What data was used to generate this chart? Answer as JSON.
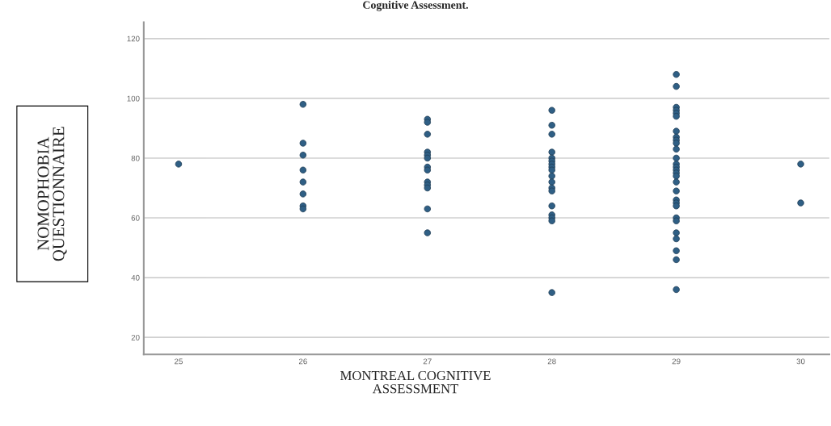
{
  "chart_data": {
    "type": "scatter",
    "title": "Cognitive Assessment.",
    "xlabel": "MONTREAL COGNITIVE\nASSESSMENT",
    "ylabel": "NOMOPHOBIA\nQUESTIONNAIRE",
    "x": [
      25,
      26,
      26,
      26,
      26,
      26,
      26,
      26,
      26,
      27,
      27,
      27,
      27,
      27,
      27,
      27,
      27,
      27,
      27,
      27,
      27,
      27,
      28,
      28,
      28,
      28,
      28,
      28,
      28,
      28,
      28,
      28,
      28,
      28,
      28,
      28,
      28,
      28,
      28,
      28,
      29,
      29,
      29,
      29,
      29,
      29,
      29,
      29,
      29,
      29,
      29,
      29,
      29,
      29,
      29,
      29,
      29,
      29,
      29,
      29,
      29,
      29,
      29,
      29,
      29,
      29,
      29,
      29,
      29,
      30,
      30
    ],
    "values": [
      78,
      98,
      85,
      81,
      76,
      72,
      68,
      64,
      63,
      93,
      92,
      88,
      82,
      81,
      80,
      77,
      76,
      72,
      71,
      70,
      63,
      55,
      96,
      91,
      88,
      82,
      80,
      79,
      78,
      77,
      76,
      74,
      72,
      70,
      69,
      64,
      61,
      60,
      59,
      35,
      108,
      104,
      97,
      96,
      95,
      94,
      89,
      87,
      86,
      85,
      83,
      80,
      78,
      77,
      76,
      75,
      74,
      72,
      69,
      66,
      65,
      64,
      60,
      59,
      55,
      53,
      49,
      46,
      36,
      78,
      65
    ],
    "color": "#2f5f85",
    "marker": "circle",
    "xlim": [
      24.72,
      30.23
    ],
    "xticks": [
      25,
      26,
      27,
      28,
      29,
      30
    ],
    "ylim": [
      14.3,
      125.5
    ],
    "yticks": [
      20,
      40,
      60,
      80,
      100,
      120
    ],
    "grid": "y"
  }
}
